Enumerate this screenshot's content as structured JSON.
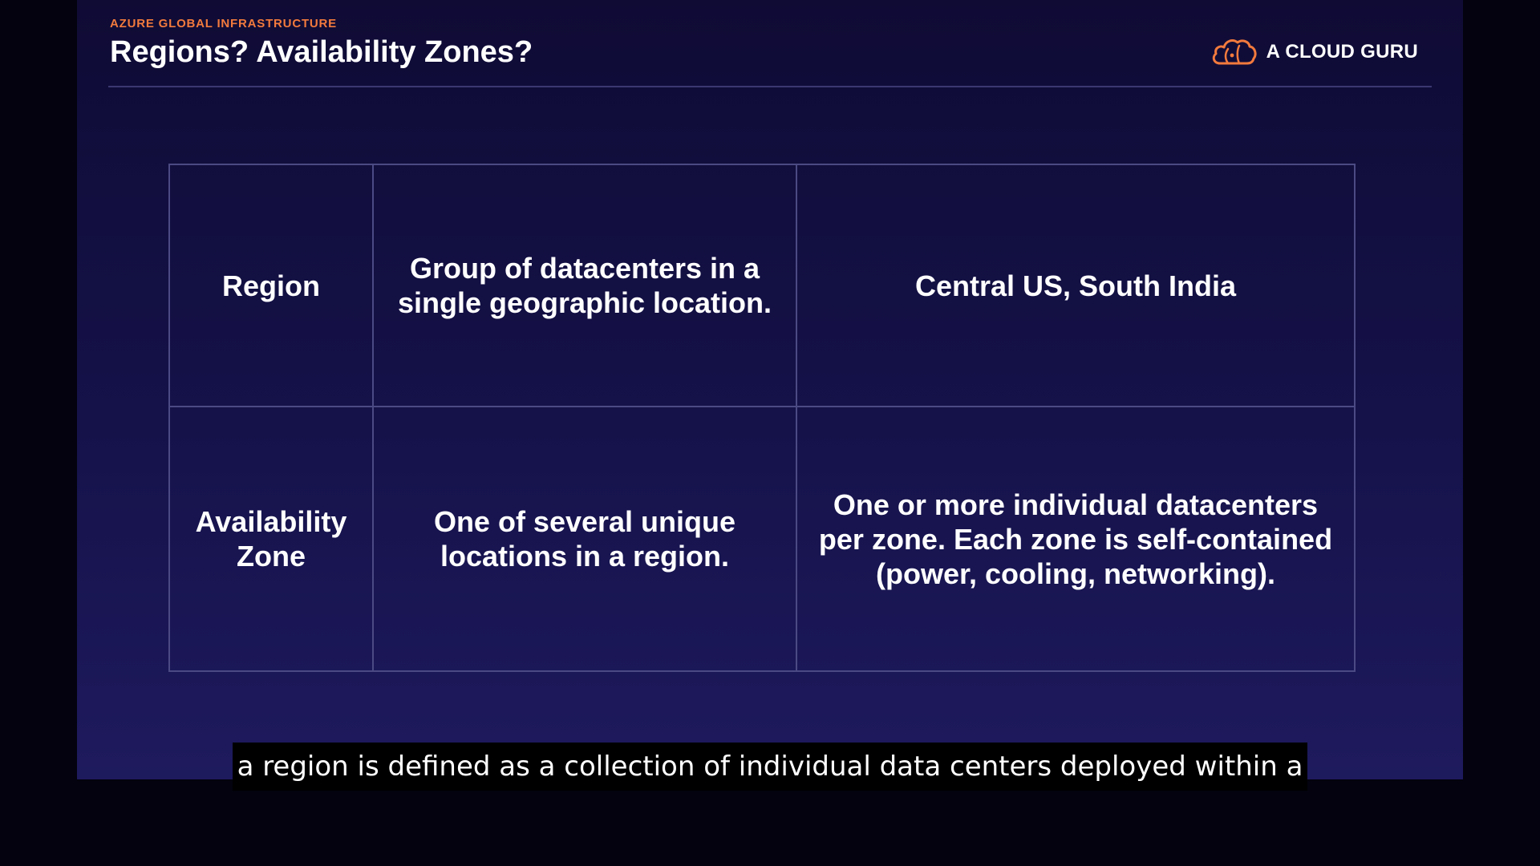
{
  "slide": {
    "eyebrow": "AZURE GLOBAL INFRASTRUCTURE",
    "title": "Regions? Availability Zones?",
    "brand": {
      "logo_icon": "cloud-logo-icon",
      "name": "A CLOUD GURU"
    }
  },
  "table": {
    "rows": [
      {
        "term": "Region",
        "definition": "Group of datacenters in a single geographic location.",
        "example": "Central US, South India"
      },
      {
        "term": "Availability Zone",
        "definition": "One of several unique locations in a region.",
        "example": "One or more individual datacenters per zone. Each zone is self-contained (power, cooling, networking)."
      }
    ]
  },
  "caption": {
    "text": "a region is defined as a collection of individual data centers deployed within a"
  },
  "colors": {
    "accent": "#f27a3d",
    "slide_background": "#15124a",
    "table_border": "#4c4a84",
    "caption_background": "#000000"
  }
}
